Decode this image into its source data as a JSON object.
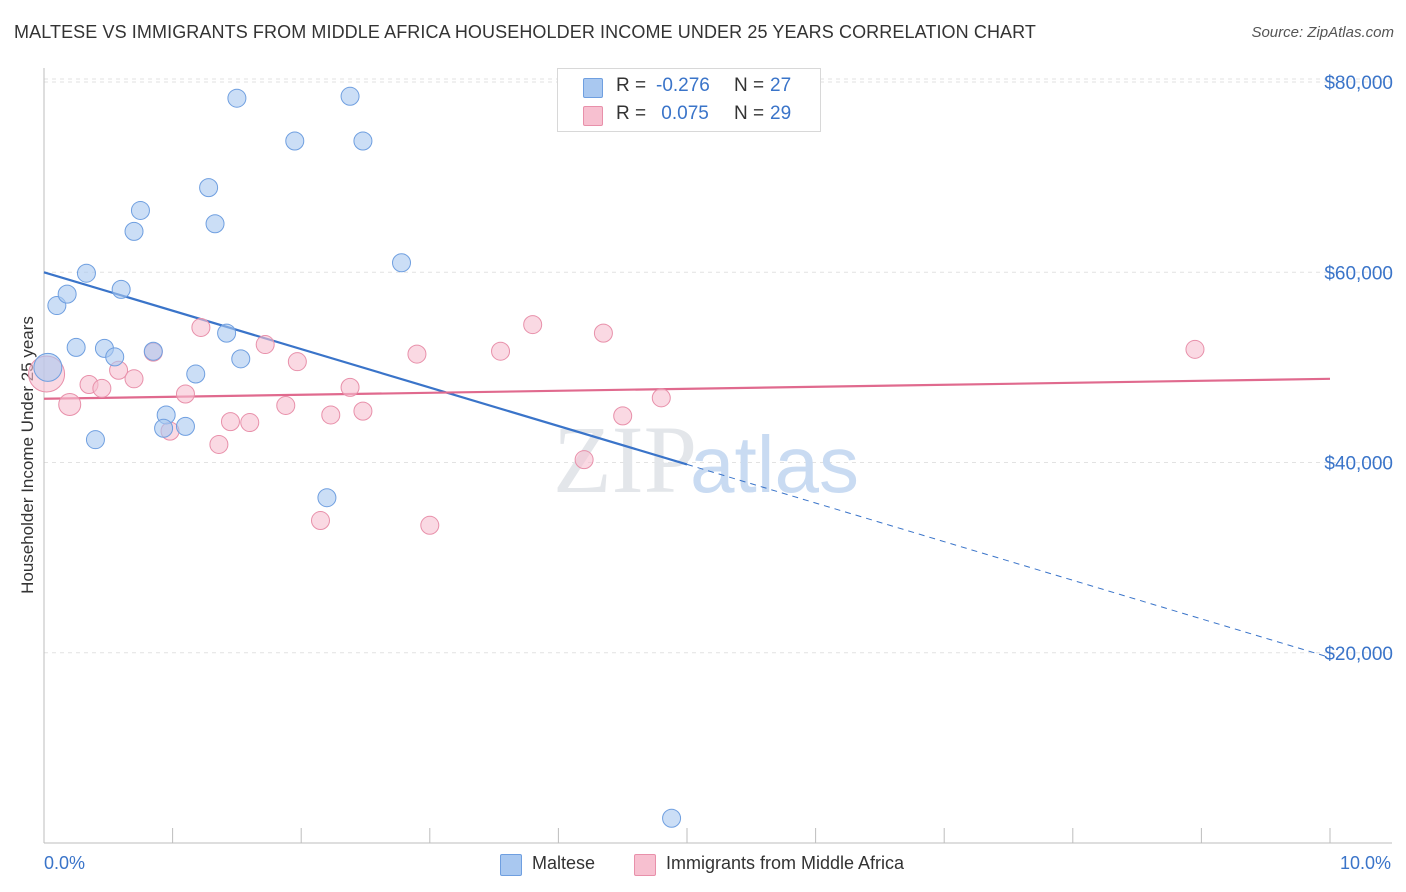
{
  "title": "MALTESE VS IMMIGRANTS FROM MIDDLE AFRICA HOUSEHOLDER INCOME UNDER 25 YEARS CORRELATION CHART",
  "source": "Source: ZipAtlas.com",
  "watermark": {
    "zip": "ZIP",
    "atlas": "atlas"
  },
  "legend": {
    "rows": [
      {
        "label": "R =",
        "r": "-0.276",
        "n_label": "N =",
        "n": "27",
        "color": "#a9c8f0",
        "border": "#6f9fe0"
      },
      {
        "label": "R =",
        "r": " 0.075",
        "n_label": "N =",
        "n": "29",
        "color": "#f7c0d0",
        "border": "#e890aa"
      }
    ]
  },
  "bottom_legend": [
    "Maltese",
    "Immigrants from Middle Africa"
  ],
  "x_axis": {
    "min_label": "0.0%",
    "max_label": "10.0%"
  },
  "chart_data": {
    "type": "scatter",
    "title": "MALTESE VS IMMIGRANTS FROM MIDDLE AFRICA HOUSEHOLDER INCOME UNDER 25 YEARS CORRELATION CHART",
    "xlabel": "",
    "ylabel": "Householder Income Under 25 years",
    "xlim": [
      0,
      10
    ],
    "ylim": [
      0,
      82000
    ],
    "y_ticks": [
      20000,
      40000,
      60000,
      80000
    ],
    "y_tick_labels": [
      "$20,000",
      "$40,000",
      "$60,000",
      "$80,000"
    ],
    "grid": true,
    "legend_position": "top-center",
    "series": [
      {
        "name": "Maltese",
        "color": "#6f9fe0",
        "fill": "#a9c8f0",
        "points": [
          [
            0.03,
            50000,
            14
          ],
          [
            0.1,
            56500,
            9
          ],
          [
            0.18,
            57700,
            9
          ],
          [
            0.33,
            59900,
            9
          ],
          [
            0.25,
            52100,
            9
          ],
          [
            0.47,
            52000,
            9
          ],
          [
            0.55,
            51100,
            9
          ],
          [
            0.6,
            58200,
            9
          ],
          [
            0.7,
            64300,
            9
          ],
          [
            0.75,
            66500,
            9
          ],
          [
            0.85,
            51700,
            9
          ],
          [
            0.95,
            45000,
            9
          ],
          [
            0.93,
            43600,
            9
          ],
          [
            0.4,
            42400,
            9
          ],
          [
            1.1,
            43800,
            9
          ],
          [
            1.18,
            49300,
            9
          ],
          [
            1.28,
            68900,
            9
          ],
          [
            1.33,
            65100,
            9
          ],
          [
            1.42,
            53600,
            9
          ],
          [
            1.5,
            78300,
            9
          ],
          [
            1.53,
            50900,
            9
          ],
          [
            1.95,
            73800,
            9
          ],
          [
            2.38,
            78500,
            9
          ],
          [
            2.48,
            73800,
            9
          ],
          [
            2.2,
            36300,
            9
          ],
          [
            2.78,
            61000,
            9
          ],
          [
            4.88,
            2600,
            9
          ]
        ],
        "trend": {
          "x0": 0,
          "y0": 60000,
          "x1": 5.0,
          "y1": 39800,
          "dashed_to_x": 10.0,
          "dashed_to_y": 19500
        }
      },
      {
        "name": "Immigrants from Middle Africa",
        "color": "#e890aa",
        "fill": "#f7c0d0",
        "points": [
          [
            0.02,
            49300,
            18
          ],
          [
            0.2,
            46100,
            11
          ],
          [
            0.35,
            48200,
            9
          ],
          [
            0.45,
            47800,
            9
          ],
          [
            0.58,
            49700,
            9
          ],
          [
            0.7,
            48800,
            9
          ],
          [
            0.85,
            51600,
            9
          ],
          [
            0.98,
            43300,
            9
          ],
          [
            1.1,
            47200,
            9
          ],
          [
            1.22,
            54200,
            9
          ],
          [
            1.36,
            41900,
            9
          ],
          [
            1.45,
            44300,
            9
          ],
          [
            1.6,
            44200,
            9
          ],
          [
            1.72,
            52400,
            9
          ],
          [
            1.88,
            46000,
            9
          ],
          [
            1.97,
            50600,
            9
          ],
          [
            2.15,
            33900,
            9
          ],
          [
            2.23,
            45000,
            9
          ],
          [
            2.38,
            47900,
            9
          ],
          [
            2.48,
            45400,
            9
          ],
          [
            2.9,
            51400,
            9
          ],
          [
            3.0,
            33400,
            9
          ],
          [
            3.55,
            51700,
            9
          ],
          [
            3.8,
            54500,
            9
          ],
          [
            4.2,
            40300,
            9
          ],
          [
            4.35,
            53600,
            9
          ],
          [
            4.5,
            44900,
            9
          ],
          [
            4.8,
            46800,
            9
          ],
          [
            8.95,
            51900,
            9
          ]
        ],
        "trend": {
          "x0": 0,
          "y0": 46700,
          "x1": 10.0,
          "y1": 48800
        }
      }
    ]
  }
}
